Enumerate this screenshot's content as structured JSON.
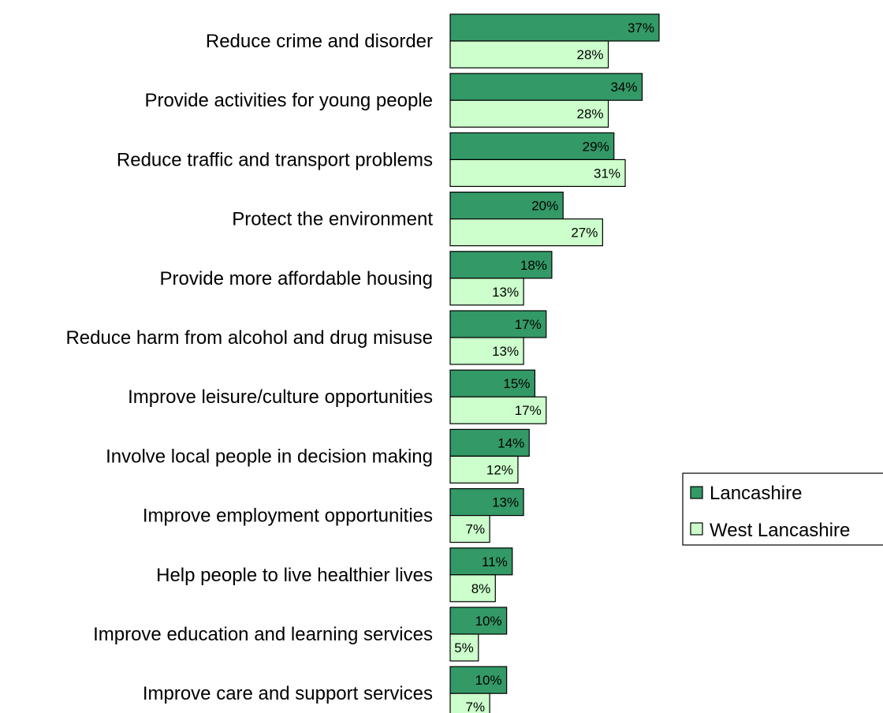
{
  "chart_data": {
    "type": "bar",
    "orientation": "horizontal",
    "categories": [
      "Reduce crime and disorder",
      "Provide activities for young people",
      "Reduce traffic and transport problems",
      "Protect the environment",
      "Provide more affordable housing",
      "Reduce harm from alcohol and drug misuse",
      "Improve leisure/culture opportunities",
      "Involve local people in decision making",
      "Improve employment opportunities",
      "Help people to live healthier lives",
      "Improve education and learning services",
      "Improve care and support services"
    ],
    "series": [
      {
        "name": "Lancashire",
        "color": "#339966",
        "values": [
          37,
          34,
          29,
          20,
          18,
          17,
          15,
          14,
          13,
          11,
          10,
          10
        ],
        "labels": [
          "37%",
          "34%",
          "29%",
          "20%",
          "18%",
          "17%",
          "15%",
          "14%",
          "13%",
          "11%",
          "10%",
          "10%"
        ]
      },
      {
        "name": "West Lancashire",
        "color": "#CCFFCC",
        "values": [
          28,
          28,
          31,
          27,
          13,
          13,
          17,
          12,
          7,
          8,
          5,
          7
        ],
        "labels": [
          "28%",
          "28%",
          "31%",
          "27%",
          "13%",
          "13%",
          "17%",
          "12%",
          "7%",
          "8%",
          "5%",
          "7%"
        ]
      }
    ],
    "value_unit": "%",
    "xlim": [
      0,
      37
    ],
    "grid": false,
    "legend_position": "right"
  }
}
